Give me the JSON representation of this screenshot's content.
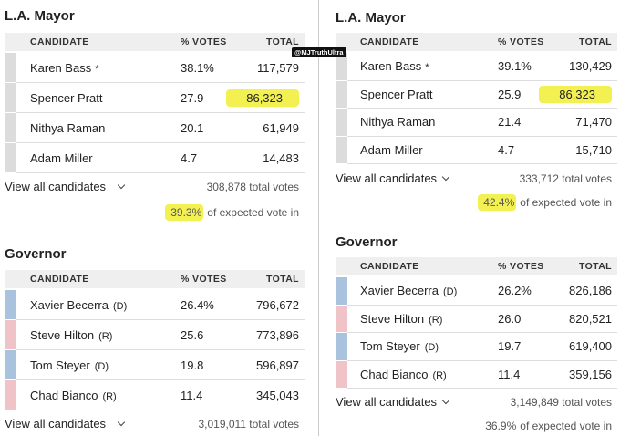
{
  "watermark": "@MJTruthUltra",
  "panels": [
    {
      "races": [
        {
          "title": "L.A. Mayor",
          "columns": [
            "CANDIDATE",
            "% VOTES",
            "TOTAL"
          ],
          "rows": [
            {
              "name": "Karen Bass",
              "mark": "*",
              "pct": "38.1%",
              "total": "117,579",
              "bar_color": "#dcdcdc"
            },
            {
              "name": "Spencer Pratt",
              "pct": "27.9",
              "total": "86,323",
              "bar_color": "#dcdcdc"
            },
            {
              "name": "Nithya Raman",
              "pct": "20.1",
              "total": "61,949",
              "bar_color": "#dcdcdc"
            },
            {
              "name": "Adam Miller",
              "pct": "4.7",
              "total": "14,483",
              "bar_color": "#dcdcdc"
            }
          ],
          "view_all": "View all candidates",
          "total_votes": "308,878 total votes",
          "expected_pct": "39.3%",
          "expected_text": "of expected vote in"
        },
        {
          "title": "Governor",
          "columns": [
            "CANDIDATE",
            "% VOTES",
            "TOTAL"
          ],
          "rows": [
            {
              "name": "Xavier Becerra",
              "party": "(D)",
              "pct": "26.4%",
              "total": "796,672",
              "bar_color": "#a9c3de"
            },
            {
              "name": "Steve Hilton",
              "party": "(R)",
              "pct": "25.6",
              "total": "773,896",
              "bar_color": "#f0c3c8"
            },
            {
              "name": "Tom Steyer",
              "party": "(D)",
              "pct": "19.8",
              "total": "596,897",
              "bar_color": "#a9c3de"
            },
            {
              "name": "Chad Bianco",
              "party": "(R)",
              "pct": "11.4",
              "total": "345,043",
              "bar_color": "#f0c3c8"
            }
          ],
          "view_all": "View all candidates",
          "total_votes": "3,019,011 total votes"
        }
      ]
    },
    {
      "races": [
        {
          "title": "L.A. Mayor",
          "columns": [
            "CANDIDATE",
            "% VOTES",
            "TOTAL"
          ],
          "rows": [
            {
              "name": "Karen Bass",
              "mark": "*",
              "pct": "39.1%",
              "total": "130,429",
              "bar_color": "#dcdcdc"
            },
            {
              "name": "Spencer Pratt",
              "pct": "25.9",
              "total": "86,323",
              "bar_color": "#dcdcdc"
            },
            {
              "name": "Nithya Raman",
              "pct": "21.4",
              "total": "71,470",
              "bar_color": "#dcdcdc"
            },
            {
              "name": "Adam Miller",
              "pct": "4.7",
              "total": "15,710",
              "bar_color": "#dcdcdc"
            }
          ],
          "view_all": "View all candidates",
          "total_votes": "333,712 total votes",
          "expected_pct": "42.4%",
          "expected_text": "of expected vote in"
        },
        {
          "title": "Governor",
          "columns": [
            "CANDIDATE",
            "% VOTES",
            "TOTAL"
          ],
          "rows": [
            {
              "name": "Xavier Becerra",
              "party": "(D)",
              "pct": "26.2%",
              "total": "826,186",
              "bar_color": "#a9c3de"
            },
            {
              "name": "Steve Hilton",
              "party": "(R)",
              "pct": "26.0",
              "total": "820,521",
              "bar_color": "#f0c3c8"
            },
            {
              "name": "Tom Steyer",
              "party": "(D)",
              "pct": "19.7",
              "total": "619,400",
              "bar_color": "#a9c3de"
            },
            {
              "name": "Chad Bianco",
              "party": "(R)",
              "pct": "11.4",
              "total": "359,156",
              "bar_color": "#f0c3c8"
            }
          ],
          "view_all": "View all candidates",
          "total_votes": "3,149,849 total votes",
          "expected_pct": "36.9%",
          "expected_text": "of expected vote in"
        }
      ]
    }
  ]
}
